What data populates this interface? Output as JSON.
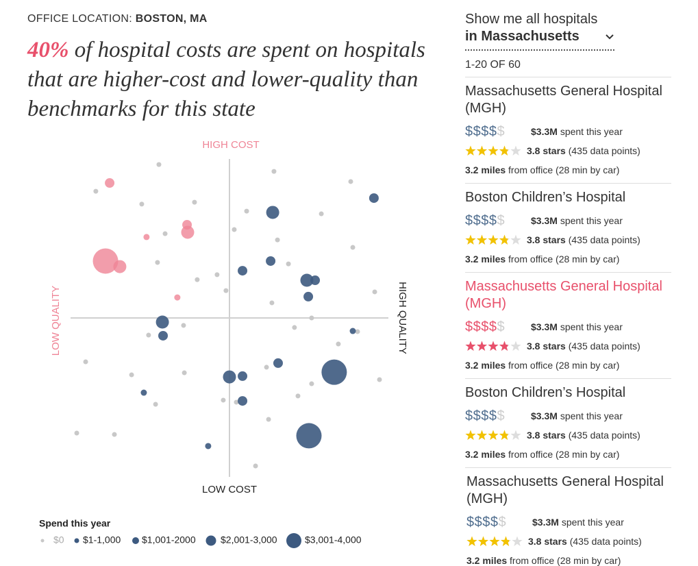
{
  "header": {
    "office_label": "OFFICE LOCATION:",
    "office_value": "BOSTON, MA"
  },
  "headline": {
    "highlight": "40%",
    "text": "of hospital costs are spent on hospitals that are higher-cost and lower-quality than benchmarks for this state"
  },
  "chart_data": {
    "type": "scatter",
    "xlim": [
      -100,
      100
    ],
    "ylim": [
      -100,
      100
    ],
    "axis_color": "#d0d0d0",
    "highlight_color": "#ef8496",
    "labels": {
      "top": "HIGH COST",
      "bottom": "LOW COST",
      "left": "LOW QUALITY",
      "right": "HIGH QUALITY"
    },
    "legend_title": "Spend this year",
    "series": [
      {
        "name": "$0",
        "color": "#c8c8c8",
        "x": [
          -44.4,
          28.0,
          76.3,
          -84.1,
          -55.2,
          -22.0,
          10.8,
          57.8,
          3.0,
          -40.5,
          30.2,
          77.6,
          -45.3,
          37.1,
          -7.8,
          -20.3,
          -2.2,
          91.4,
          26.7,
          51.7,
          -28.9,
          40.9,
          80.6,
          -50.9,
          68.5,
          -90.5,
          23.3,
          -28.4,
          -61.6,
          51.7,
          94.4,
          43.1,
          -3.9,
          4.3,
          -46.5,
          24.6,
          -96.1,
          -72.4,
          16.4
        ],
        "y": [
          96.5,
          92.2,
          85.8,
          79.7,
          71.6,
          72.8,
          67.2,
          65.5,
          55.6,
          53.0,
          49.1,
          44.4,
          34.9,
          34.0,
          27.2,
          24.1,
          17.2,
          16.4,
          9.5,
          0,
          -4.7,
          -6.0,
          -8.6,
          -10.8,
          -16.4,
          -27.6,
          -31.0,
          -34.5,
          -35.8,
          -41.4,
          -38.8,
          -49.1,
          -51.7,
          -53.0,
          -54.3,
          -63.8,
          -72.4,
          -73.3,
          -93.1
        ]
      },
      {
        "name": "$1-1,000",
        "color": "#3d5a80",
        "x": [
          -53.9,
          -13.4,
          77.6,
          -52.2,
          -32.8
        ],
        "y": [
          -47.0,
          -80.6,
          -8.2,
          50.9,
          12.9
        ]
      },
      {
        "name": "$1,001-2000",
        "color": "#3d5a80",
        "x": [
          8.2,
          25.9,
          53.9,
          49.6,
          -41.8,
          30.6,
          8.2,
          8.2,
          -75.4,
          -26.7,
          90.9
        ],
        "y": [
          29.7,
          35.8,
          23.7,
          13.4,
          -11.2,
          -28.4,
          -36.6,
          -52.2,
          84.9,
          58.6,
          75.4
        ]
      },
      {
        "name": "$2,001-3,000",
        "color": "#3d5a80",
        "x": [
          27.2,
          -42.2,
          0,
          48.7,
          -26.3,
          -69.0
        ],
        "y": [
          66.4,
          -2.6,
          -37.1,
          23.7,
          53.9,
          32.3
        ]
      },
      {
        "name": "$3,001-4,000",
        "color": "#3d5a80",
        "x": [
          65.9,
          50.0,
          -78.0
        ],
        "y": [
          -34.1,
          -74.1,
          35.8
        ]
      }
    ]
  },
  "list": {
    "prompt": "Show me all hospitals",
    "filter": "in Massachusetts",
    "count": "1-20 OF 60",
    "items": [
      {
        "name": "Massachusetts General Hospital (MGH)",
        "cost_on": "$$$$",
        "cost_off": "$",
        "spent": "$3.3M",
        "spent_text": "spent this year",
        "rating": 3.8,
        "rating_text": "stars",
        "points_text": "(435 data points)",
        "distance": "3.2 miles",
        "distance_text": "from office (28 min by car)",
        "highlight": false
      },
      {
        "name": "Boston Children’s Hospital",
        "cost_on": "$$$$",
        "cost_off": "$",
        "spent": "$3.3M",
        "spent_text": "spent this year",
        "rating": 3.8,
        "rating_text": "stars",
        "points_text": "(435 data points)",
        "distance": "3.2 miles",
        "distance_text": "from office (28 min by car)",
        "highlight": false
      },
      {
        "name": "Massachusetts General Hospital (MGH)",
        "cost_on": "$$$$",
        "cost_off": "$",
        "spent": "$3.3M",
        "spent_text": "spent this year",
        "rating": 3.8,
        "rating_text": "stars",
        "points_text": "(435 data points)",
        "distance": "3.2 miles",
        "distance_text": "from office (28 min by car)",
        "highlight": true
      },
      {
        "name": "Boston Children’s Hospital",
        "cost_on": "$$$$",
        "cost_off": "$",
        "spent": "$3.3M",
        "spent_text": "spent this year",
        "rating": 3.8,
        "rating_text": "stars",
        "points_text": "(435 data points)",
        "distance": "3.2 miles",
        "distance_text": "from office (28 min by car)",
        "highlight": false
      },
      {
        "name": "Massachusetts General Hospital (MGH)",
        "cost_on": "$$$$",
        "cost_off": "$",
        "spent": "$3.3M",
        "spent_text": "spent this year",
        "rating": 3.8,
        "rating_text": "stars",
        "points_text": "(435 data points)",
        "distance": "3.2 miles",
        "distance_text": "from office (28 min by car)",
        "highlight": false
      }
    ]
  }
}
